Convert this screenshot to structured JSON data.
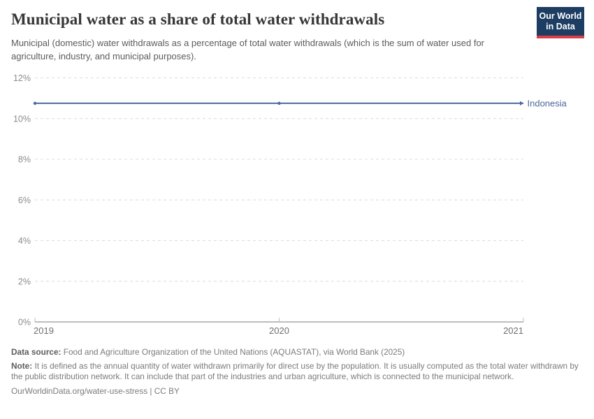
{
  "header": {
    "title": "Municipal water as a share of total water withdrawals",
    "subtitle": "Municipal (domestic) water withdrawals as a percentage of total water withdrawals (which is the sum of water used for agriculture, industry, and municipal purposes).",
    "logo": {
      "line1": "Our World",
      "line2": "in Data"
    }
  },
  "chart_data": {
    "type": "line",
    "title": "Municipal water as a share of total water withdrawals",
    "xlabel": "",
    "ylabel": "",
    "xlim": [
      2019,
      2021
    ],
    "ylim": [
      0,
      12
    ],
    "xticks": [
      2019,
      2020,
      2021
    ],
    "yticks": [
      0,
      2,
      4,
      6,
      8,
      10,
      12
    ],
    "ytick_suffix": "%",
    "grid": "horizontal-dashed",
    "legend_position": "end-of-line-label",
    "series": [
      {
        "name": "Indonesia",
        "color": "#4c6a9c",
        "x": [
          2019,
          2020,
          2021
        ],
        "values": [
          10.75,
          10.75,
          10.75
        ]
      }
    ]
  },
  "footer": {
    "data_source_label": "Data source:",
    "data_source": "Food and Agriculture Organization of the United Nations (AQUASTAT), via World Bank (2025)",
    "note_label": "Note:",
    "note": "It is defined as the annual quantity of water withdrawn primarily for direct use by the population. It is usually computed as the total water withdrawn by the public distribution network. It can include that part of the industries and urban agriculture, which is connected to the municipal network.",
    "link": "OurWorldinData.org/water-use-stress | CC BY"
  },
  "colors": {
    "series_blue": "#4c6a9c",
    "logo_navy": "#1d3d63",
    "logo_red": "#dc3e45",
    "gridline": "#dcdcdc",
    "axis": "#a8a8a8",
    "y_tick_text": "#8c8c8c",
    "x_tick_text": "#6f6f6f",
    "title_text": "#383636",
    "footer_text": "#7b7b7b"
  }
}
